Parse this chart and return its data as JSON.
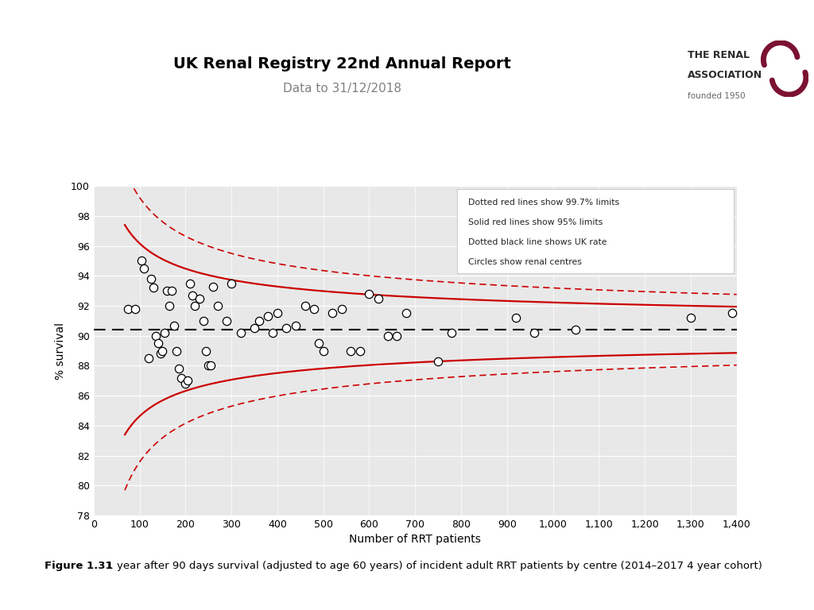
{
  "title": "UK Renal Registry 22nd Annual Report",
  "subtitle": "Data to 31/12/2018",
  "xlabel": "Number of RRT patients",
  "ylabel": "% survival",
  "uk_rate": 90.4,
  "xlim": [
    0,
    1400
  ],
  "ylim": [
    78,
    100
  ],
  "yticks": [
    78,
    80,
    82,
    84,
    86,
    88,
    90,
    92,
    94,
    96,
    98,
    100
  ],
  "xticks": [
    0,
    100,
    200,
    300,
    400,
    500,
    600,
    700,
    800,
    900,
    1000,
    1100,
    1200,
    1300,
    1400
  ],
  "xtick_labels": [
    "0",
    "100",
    "200",
    "300",
    "400",
    "500",
    "600",
    "700",
    "800",
    "900",
    "1,000",
    "1,100",
    "1,200",
    "1,300",
    "1,400"
  ],
  "legend_text": [
    "Dotted red lines show 99.7% limits",
    "Solid red lines show 95% limits",
    "Dotted black line shows UK rate",
    "Circles show renal centres"
  ],
  "caption_bold": "Figure 1.31",
  "caption_normal": " 1 year after 90 days survival (adjusted to age 60 years) of incident adult RRT patients by centre (2014–2017 4 year cohort)",
  "scatter_x": [
    75,
    90,
    105,
    110,
    120,
    125,
    130,
    135,
    140,
    145,
    150,
    155,
    160,
    165,
    170,
    175,
    180,
    185,
    190,
    200,
    205,
    210,
    215,
    220,
    230,
    240,
    245,
    250,
    255,
    260,
    270,
    290,
    300,
    320,
    350,
    360,
    380,
    390,
    400,
    420,
    440,
    460,
    480,
    490,
    500,
    520,
    540,
    560,
    580,
    600,
    620,
    640,
    660,
    680,
    750,
    780,
    920,
    960,
    1050,
    1300,
    1390
  ],
  "scatter_y": [
    91.8,
    91.8,
    95.0,
    94.5,
    88.5,
    93.8,
    93.2,
    90.0,
    89.5,
    88.8,
    89.0,
    90.2,
    93.0,
    92.0,
    93.0,
    90.7,
    89.0,
    87.8,
    87.2,
    86.8,
    87.0,
    93.5,
    92.7,
    92.0,
    92.5,
    91.0,
    89.0,
    88.0,
    88.0,
    93.3,
    92.0,
    91.0,
    93.5,
    90.2,
    90.5,
    91.0,
    91.3,
    90.2,
    91.5,
    90.5,
    90.7,
    92.0,
    91.8,
    89.5,
    89.0,
    91.5,
    91.8,
    89.0,
    89.0,
    92.8,
    92.5,
    90.0,
    90.0,
    91.5,
    88.3,
    90.2,
    91.2,
    90.2,
    90.4,
    91.2,
    91.5
  ],
  "background_color": "#e8e8e8",
  "red_color": "#cc0000",
  "title_fontsize": 14,
  "subtitle_fontsize": 11,
  "axis_fontsize": 9,
  "label_fontsize": 10
}
